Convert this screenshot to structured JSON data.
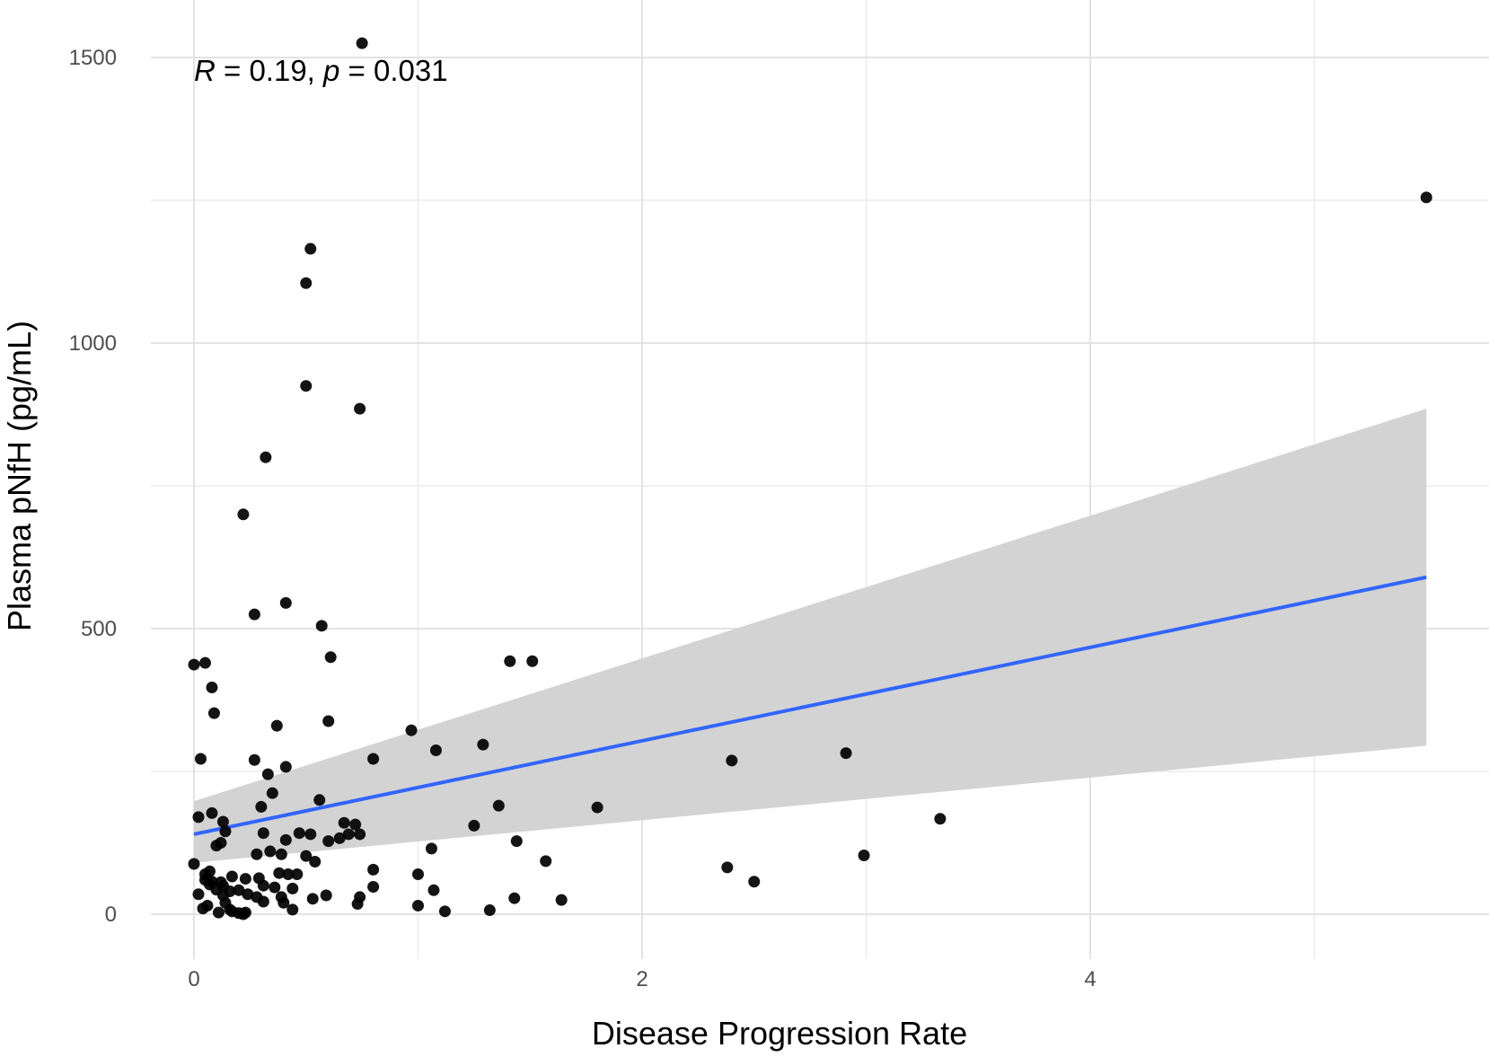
{
  "chart_data": {
    "type": "scatter",
    "xlabel": "Disease Progression Rate",
    "ylabel": "Plasma pNfH (pg/mL)",
    "xlim": [
      -0.2,
      5.8
    ],
    "ylim": [
      -80,
      1560
    ],
    "x_ticks": [
      0,
      2,
      4
    ],
    "x_tick_labels": [
      "0",
      "2",
      "4"
    ],
    "y_ticks": [
      0,
      500,
      1000,
      1500
    ],
    "y_tick_labels": [
      "0",
      "500",
      "1000",
      "1500"
    ],
    "x_minor_gridlines": [
      1,
      3,
      5
    ],
    "y_minor_gridlines": [
      250,
      750,
      1250
    ],
    "grid": true,
    "annotation": {
      "R_label": "R",
      "R_text": " = 0.19, ",
      "p_label": "p",
      "p_text": " = 0.031"
    },
    "fit_line": {
      "method": "linear",
      "color": "#3366ff",
      "x": [
        0,
        5.5
      ],
      "y": [
        140,
        590
      ],
      "ci_lower": [
        90,
        295
      ],
      "ci_upper": [
        198,
        885
      ],
      "ci_color": "#d3d3d3"
    },
    "point_color": "#000000",
    "points": [
      [
        0.75,
        1525
      ],
      [
        5.5,
        1255
      ],
      [
        0.52,
        1165
      ],
      [
        0.5,
        1105
      ],
      [
        0.5,
        925
      ],
      [
        0.74,
        885
      ],
      [
        0.32,
        800
      ],
      [
        0.22,
        700
      ],
      [
        0.41,
        545
      ],
      [
        0.27,
        525
      ],
      [
        0.57,
        505
      ],
      [
        0.61,
        450
      ],
      [
        0.0,
        437
      ],
      [
        0.05,
        440
      ],
      [
        1.41,
        443
      ],
      [
        1.51,
        443
      ],
      [
        0.08,
        397
      ],
      [
        0.09,
        352
      ],
      [
        0.6,
        338
      ],
      [
        0.37,
        330
      ],
      [
        0.97,
        322
      ],
      [
        1.29,
        297
      ],
      [
        1.08,
        287
      ],
      [
        2.91,
        282
      ],
      [
        0.03,
        272
      ],
      [
        0.27,
        270
      ],
      [
        0.8,
        272
      ],
      [
        2.4,
        269
      ],
      [
        0.41,
        258
      ],
      [
        0.33,
        245
      ],
      [
        0.35,
        212
      ],
      [
        0.56,
        200
      ],
      [
        0.3,
        188
      ],
      [
        1.36,
        190
      ],
      [
        1.8,
        187
      ],
      [
        0.02,
        170
      ],
      [
        0.08,
        177
      ],
      [
        3.33,
        167
      ],
      [
        0.13,
        162
      ],
      [
        0.67,
        160
      ],
      [
        0.72,
        157
      ],
      [
        1.25,
        155
      ],
      [
        0.14,
        145
      ],
      [
        0.31,
        142
      ],
      [
        0.47,
        142
      ],
      [
        0.52,
        140
      ],
      [
        0.69,
        140
      ],
      [
        0.74,
        140
      ],
      [
        0.65,
        133
      ],
      [
        0.41,
        130
      ],
      [
        0.6,
        128
      ],
      [
        1.44,
        128
      ],
      [
        0.12,
        125
      ],
      [
        0.1,
        120
      ],
      [
        1.06,
        115
      ],
      [
        0.34,
        110
      ],
      [
        0.39,
        105
      ],
      [
        0.28,
        105
      ],
      [
        0.5,
        102
      ],
      [
        2.99,
        103
      ],
      [
        0.54,
        92
      ],
      [
        1.57,
        93
      ],
      [
        0.0,
        88
      ],
      [
        2.38,
        82
      ],
      [
        0.8,
        78
      ],
      [
        0.07,
        75
      ],
      [
        0.05,
        70
      ],
      [
        0.42,
        70
      ],
      [
        0.38,
        72
      ],
      [
        0.46,
        70
      ],
      [
        1.0,
        70
      ],
      [
        0.17,
        66
      ],
      [
        0.29,
        63
      ],
      [
        0.23,
        62
      ],
      [
        0.05,
        60
      ],
      [
        0.08,
        57
      ],
      [
        0.12,
        56
      ],
      [
        2.5,
        57
      ],
      [
        0.07,
        52
      ],
      [
        0.13,
        50
      ],
      [
        0.31,
        50
      ],
      [
        0.36,
        47
      ],
      [
        0.44,
        45
      ],
      [
        0.8,
        48
      ],
      [
        0.1,
        43
      ],
      [
        0.2,
        42
      ],
      [
        1.07,
        42
      ],
      [
        0.16,
        40
      ],
      [
        0.24,
        35
      ],
      [
        0.02,
        35
      ],
      [
        0.13,
        33
      ],
      [
        0.59,
        33
      ],
      [
        0.74,
        30
      ],
      [
        0.28,
        30
      ],
      [
        0.39,
        30
      ],
      [
        1.43,
        28
      ],
      [
        0.53,
        27
      ],
      [
        1.64,
        25
      ],
      [
        0.31,
        22
      ],
      [
        0.14,
        20
      ],
      [
        0.4,
        20
      ],
      [
        0.73,
        18
      ],
      [
        0.06,
        15
      ],
      [
        0.04,
        10
      ],
      [
        1.0,
        15
      ],
      [
        0.16,
        8
      ],
      [
        0.44,
        8
      ],
      [
        1.12,
        5
      ],
      [
        1.32,
        7
      ],
      [
        0.11,
        3
      ],
      [
        0.2,
        2
      ],
      [
        0.23,
        3
      ],
      [
        0.17,
        5
      ],
      [
        0.22,
        0
      ]
    ]
  }
}
